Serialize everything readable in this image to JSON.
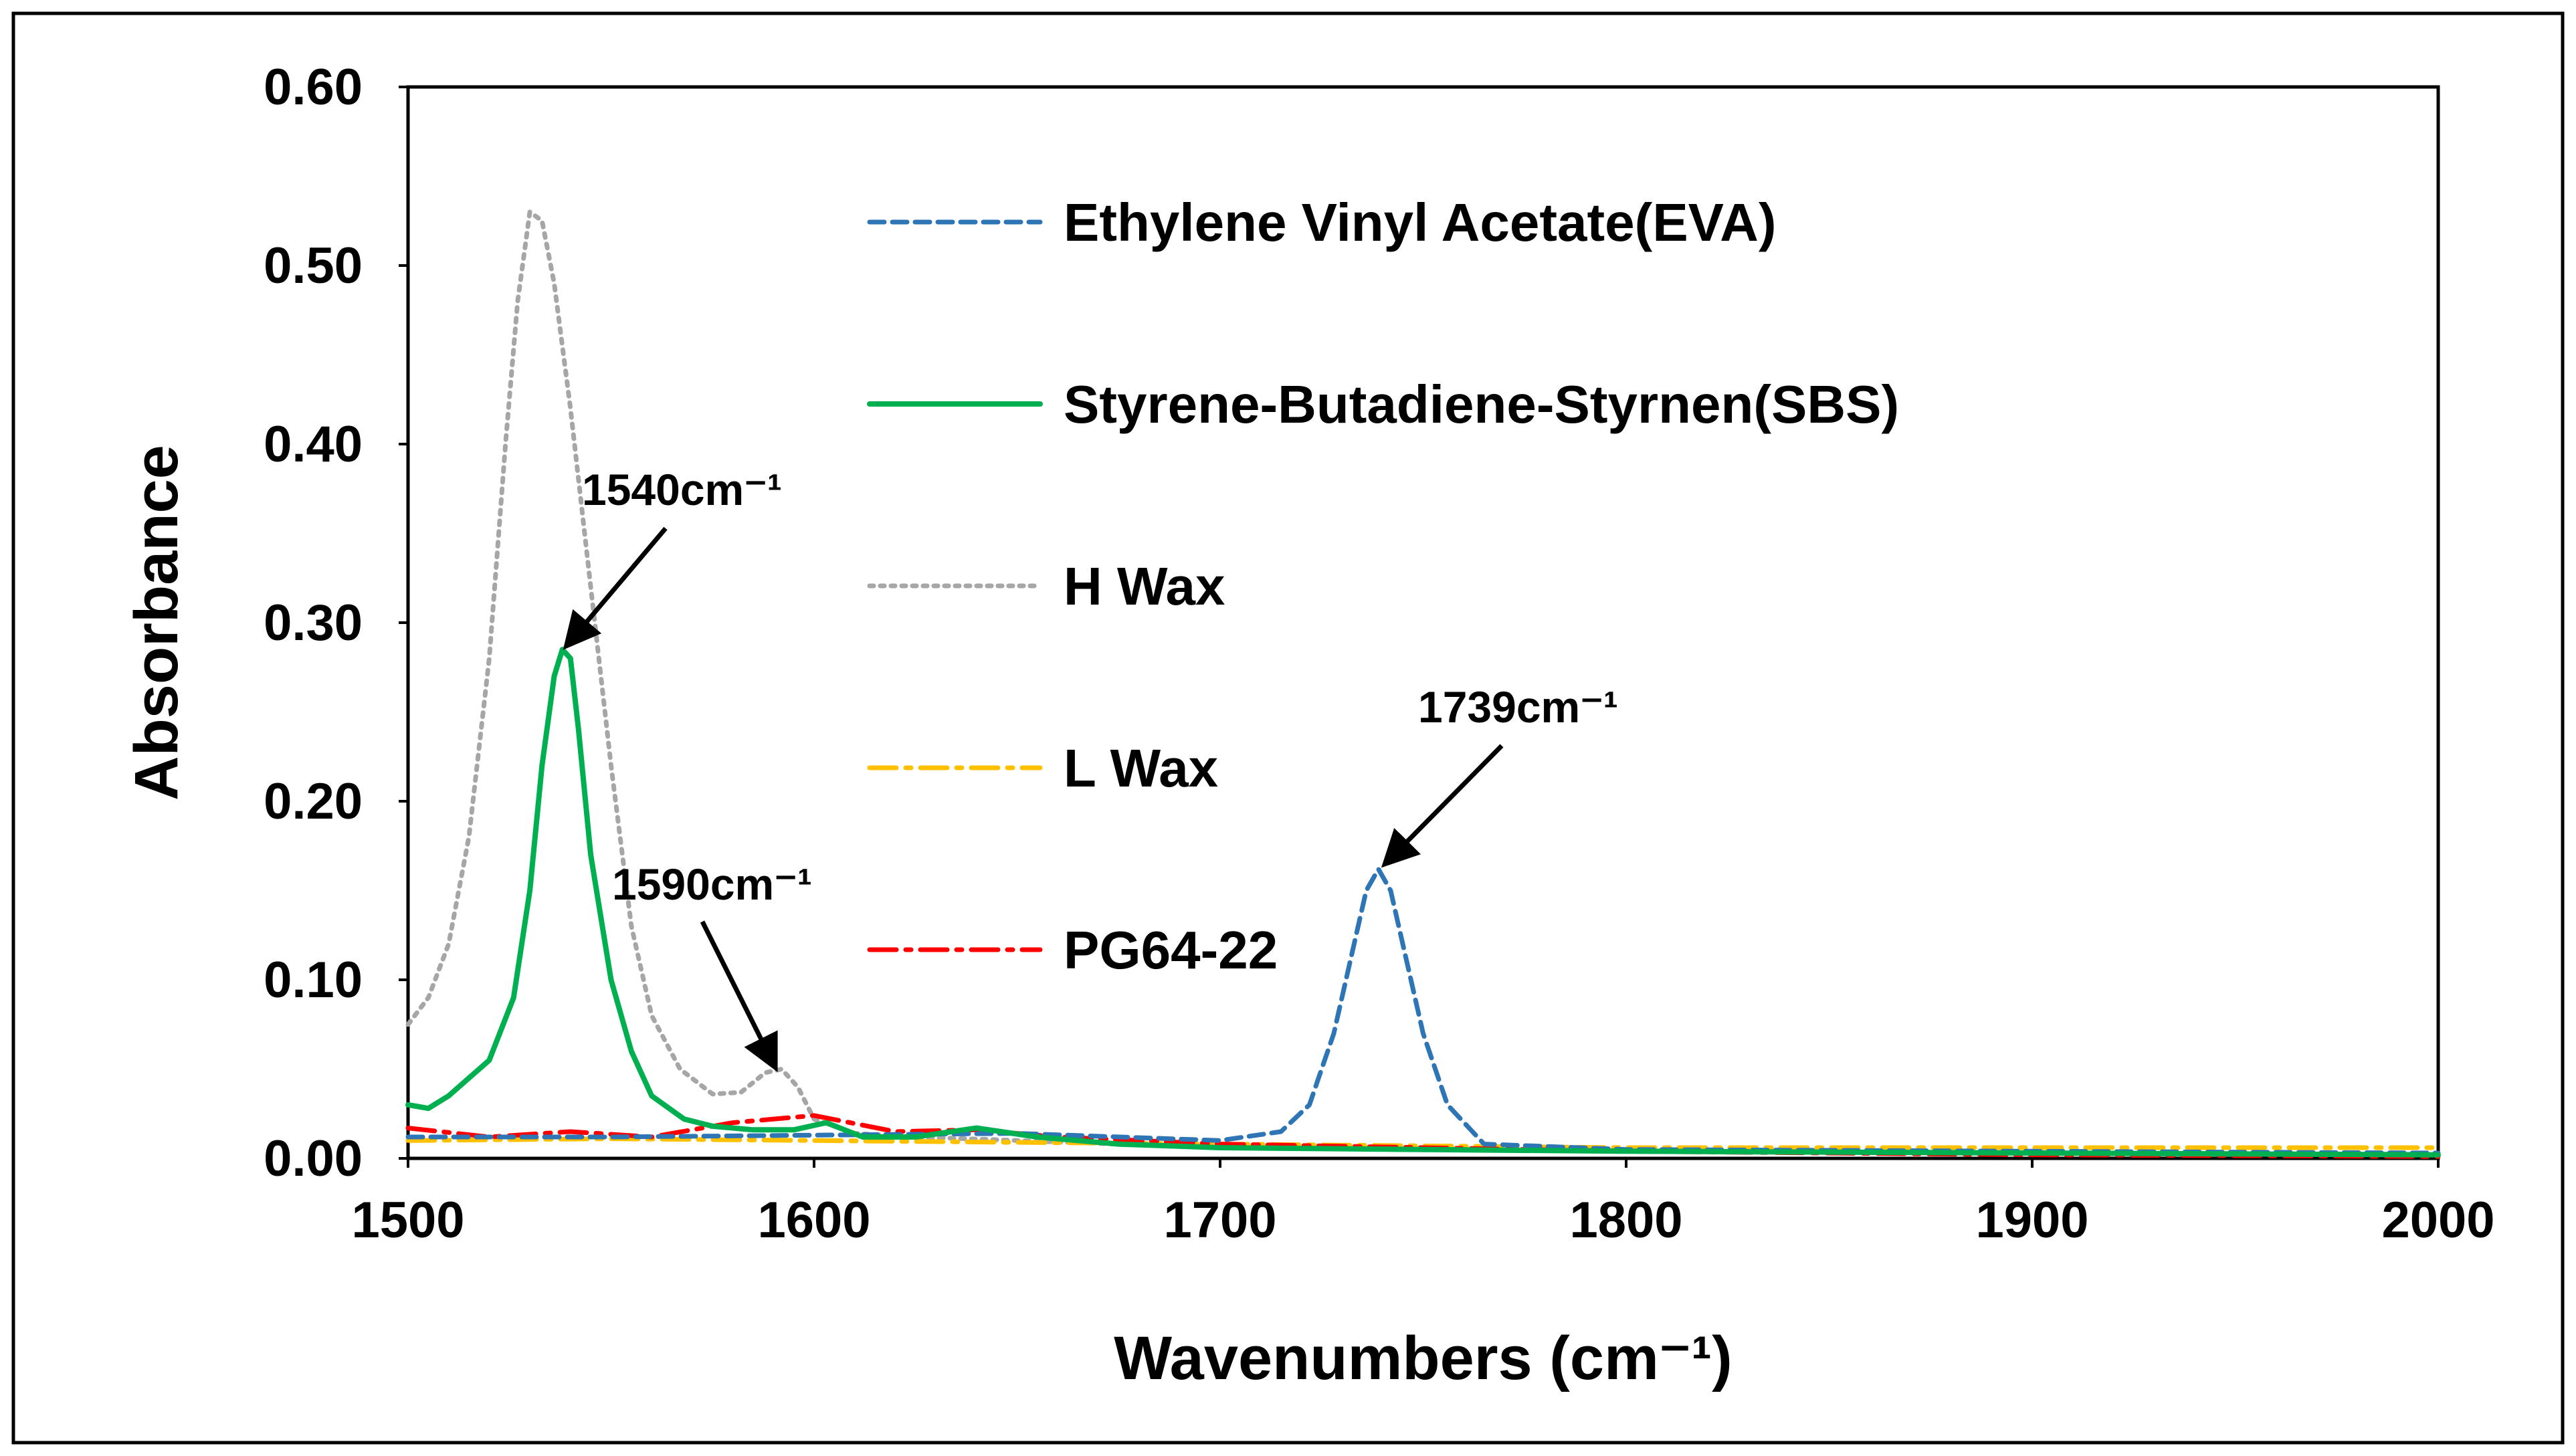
{
  "chart_data": {
    "type": "line",
    "title": "",
    "xlabel": "Wavenumbers (cm⁻¹)",
    "ylabel": "Absorbance",
    "xlim": [
      1500,
      2000
    ],
    "ylim": [
      0,
      0.6
    ],
    "xticks": [
      "1500",
      "1600",
      "1700",
      "1800",
      "1900",
      "2000"
    ],
    "yticks": [
      "0.00",
      "0.10",
      "0.20",
      "0.30",
      "0.40",
      "0.50",
      "0.60"
    ],
    "grid": false,
    "legend_position": "top-center, inside plot",
    "series": [
      {
        "name": "Ethylene Vinyl Acetate(EVA)",
        "color": "#2E75B6",
        "style": "dashed",
        "x": [
          1500,
          1550,
          1600,
          1650,
          1700,
          1715,
          1722,
          1728,
          1733,
          1736,
          1739,
          1742,
          1745,
          1750,
          1756,
          1765,
          1800,
          1900,
          2000
        ],
        "y": [
          0.012,
          0.012,
          0.013,
          0.014,
          0.01,
          0.015,
          0.03,
          0.07,
          0.12,
          0.15,
          0.162,
          0.15,
          0.12,
          0.07,
          0.03,
          0.008,
          0.005,
          0.004,
          0.003
        ]
      },
      {
        "name": "Styrene-Butadiene-Styrnen(SBS)",
        "color": "#00B050",
        "style": "solid",
        "x": [
          1500,
          1505,
          1510,
          1520,
          1526,
          1530,
          1533,
          1536,
          1538,
          1540,
          1542,
          1545,
          1550,
          1555,
          1560,
          1568,
          1575,
          1585,
          1595,
          1603,
          1612,
          1625,
          1640,
          1655,
          1675,
          1700,
          1750,
          1800,
          1900,
          2000
        ],
        "y": [
          0.03,
          0.028,
          0.035,
          0.055,
          0.09,
          0.15,
          0.22,
          0.27,
          0.285,
          0.28,
          0.24,
          0.17,
          0.1,
          0.06,
          0.035,
          0.022,
          0.018,
          0.016,
          0.016,
          0.02,
          0.012,
          0.012,
          0.017,
          0.012,
          0.008,
          0.006,
          0.005,
          0.004,
          0.003,
          0.002
        ]
      },
      {
        "name": "H Wax",
        "color": "#A6A6A6",
        "style": "dotted",
        "x": [
          1500,
          1505,
          1510,
          1515,
          1520,
          1524,
          1527,
          1530,
          1533,
          1536,
          1540,
          1545,
          1550,
          1555,
          1560,
          1567,
          1575,
          1582,
          1588,
          1592,
          1596,
          1600,
          1610,
          1625,
          1650,
          1700,
          1800,
          1900,
          2000
        ],
        "y": [
          0.075,
          0.09,
          0.12,
          0.18,
          0.28,
          0.4,
          0.48,
          0.53,
          0.525,
          0.49,
          0.42,
          0.32,
          0.22,
          0.13,
          0.08,
          0.05,
          0.036,
          0.037,
          0.048,
          0.05,
          0.04,
          0.022,
          0.014,
          0.012,
          0.01,
          0.006,
          0.004,
          0.003,
          0.002
        ]
      },
      {
        "name": "L Wax",
        "color": "#FFC000",
        "style": "dash-dot",
        "x": [
          1500,
          1550,
          1600,
          1650,
          1700,
          1750,
          1800,
          1850,
          1900,
          1950,
          2000
        ],
        "y": [
          0.01,
          0.011,
          0.01,
          0.009,
          0.008,
          0.007,
          0.006,
          0.006,
          0.006,
          0.006,
          0.006
        ]
      },
      {
        "name": "PG64-22",
        "color": "#FF0000",
        "style": "dash-dot",
        "x": [
          1500,
          1520,
          1540,
          1560,
          1580,
          1600,
          1620,
          1640,
          1660,
          1700,
          1750,
          1800,
          1900,
          2000
        ],
        "y": [
          0.017,
          0.012,
          0.015,
          0.012,
          0.02,
          0.024,
          0.015,
          0.016,
          0.012,
          0.008,
          0.006,
          0.004,
          0.002,
          0.001
        ]
      }
    ],
    "annotations": [
      {
        "text": "1540cm⁻¹",
        "x": 1540,
        "y": 0.285
      },
      {
        "text": "1590cm⁻¹",
        "x": 1590,
        "y": 0.05
      },
      {
        "text": "1739cm⁻¹",
        "x": 1739,
        "y": 0.162
      }
    ]
  }
}
